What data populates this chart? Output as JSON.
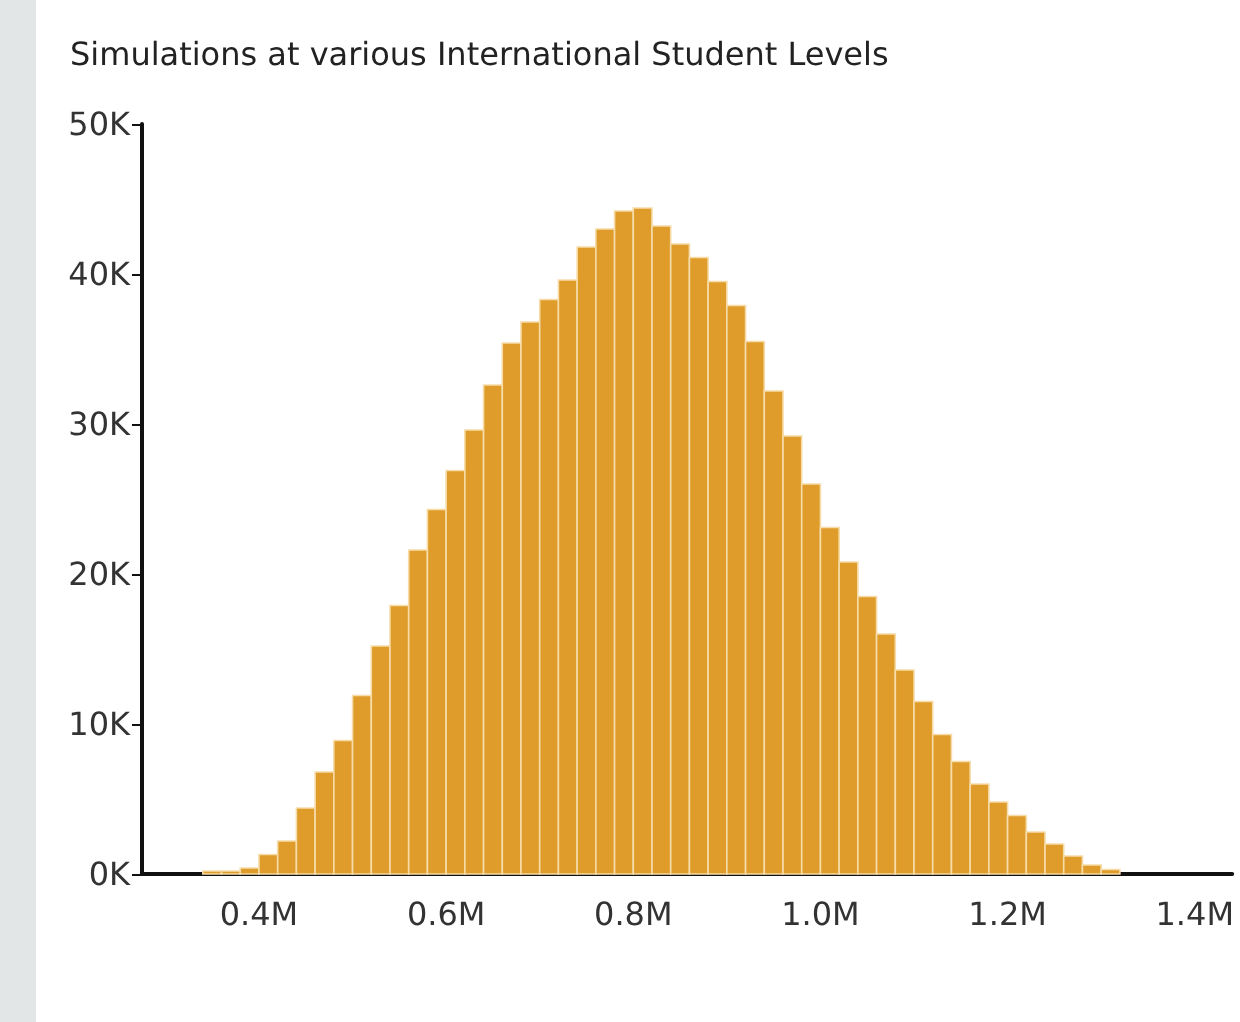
{
  "chart_data": {
    "type": "histogram",
    "title": "Simulations at various International Student Levels",
    "bins": [
      0.34,
      0.36,
      0.38,
      0.4,
      0.42,
      0.44,
      0.46,
      0.48,
      0.5,
      0.52,
      0.54,
      0.56,
      0.58,
      0.6,
      0.62,
      0.64,
      0.66,
      0.68,
      0.7,
      0.72,
      0.74,
      0.76,
      0.78,
      0.8,
      0.82,
      0.84,
      0.86,
      0.88,
      0.9,
      0.92,
      0.94,
      0.96,
      0.98,
      1.0,
      1.02,
      1.04,
      1.06,
      1.08,
      1.1,
      1.12,
      1.14,
      1.16,
      1.18,
      1.2,
      1.22,
      1.24,
      1.26,
      1.28,
      1.3,
      1.32
    ],
    "values": [
      0.2,
      0.2,
      0.4,
      1.3,
      2.2,
      4.4,
      6.8,
      8.9,
      11.9,
      15.2,
      17.9,
      21.6,
      24.3,
      26.9,
      29.6,
      32.6,
      35.4,
      36.8,
      38.3,
      39.6,
      41.8,
      43.0,
      44.2,
      44.4,
      43.2,
      42.0,
      41.1,
      39.5,
      37.9,
      35.5,
      32.2,
      29.2,
      26.0,
      23.1,
      20.8,
      18.5,
      16.0,
      13.6,
      11.5,
      9.3,
      7.5,
      6.0,
      4.8,
      3.9,
      2.8,
      2.0,
      1.2,
      0.6,
      0.3
    ],
    "color": "#df9c2b",
    "xlim": [
      0.275,
      1.44
    ],
    "xticks": [
      {
        "value": 0.4,
        "label": "0.4M"
      },
      {
        "value": 0.6,
        "label": "0.6M"
      },
      {
        "value": 0.8,
        "label": "0.8M"
      },
      {
        "value": 1.0,
        "label": "1.0M"
      },
      {
        "value": 1.2,
        "label": "1.2M"
      },
      {
        "value": 1.4,
        "label": "1.4M"
      }
    ],
    "ylim": [
      0,
      50
    ],
    "yticks": [
      {
        "value": 0,
        "label": "0K"
      },
      {
        "value": 10,
        "label": "10K"
      },
      {
        "value": 20,
        "label": "20K"
      },
      {
        "value": 30,
        "label": "30K"
      },
      {
        "value": 40,
        "label": "40K"
      },
      {
        "value": 50,
        "label": "50K"
      }
    ],
    "grid": false
  }
}
